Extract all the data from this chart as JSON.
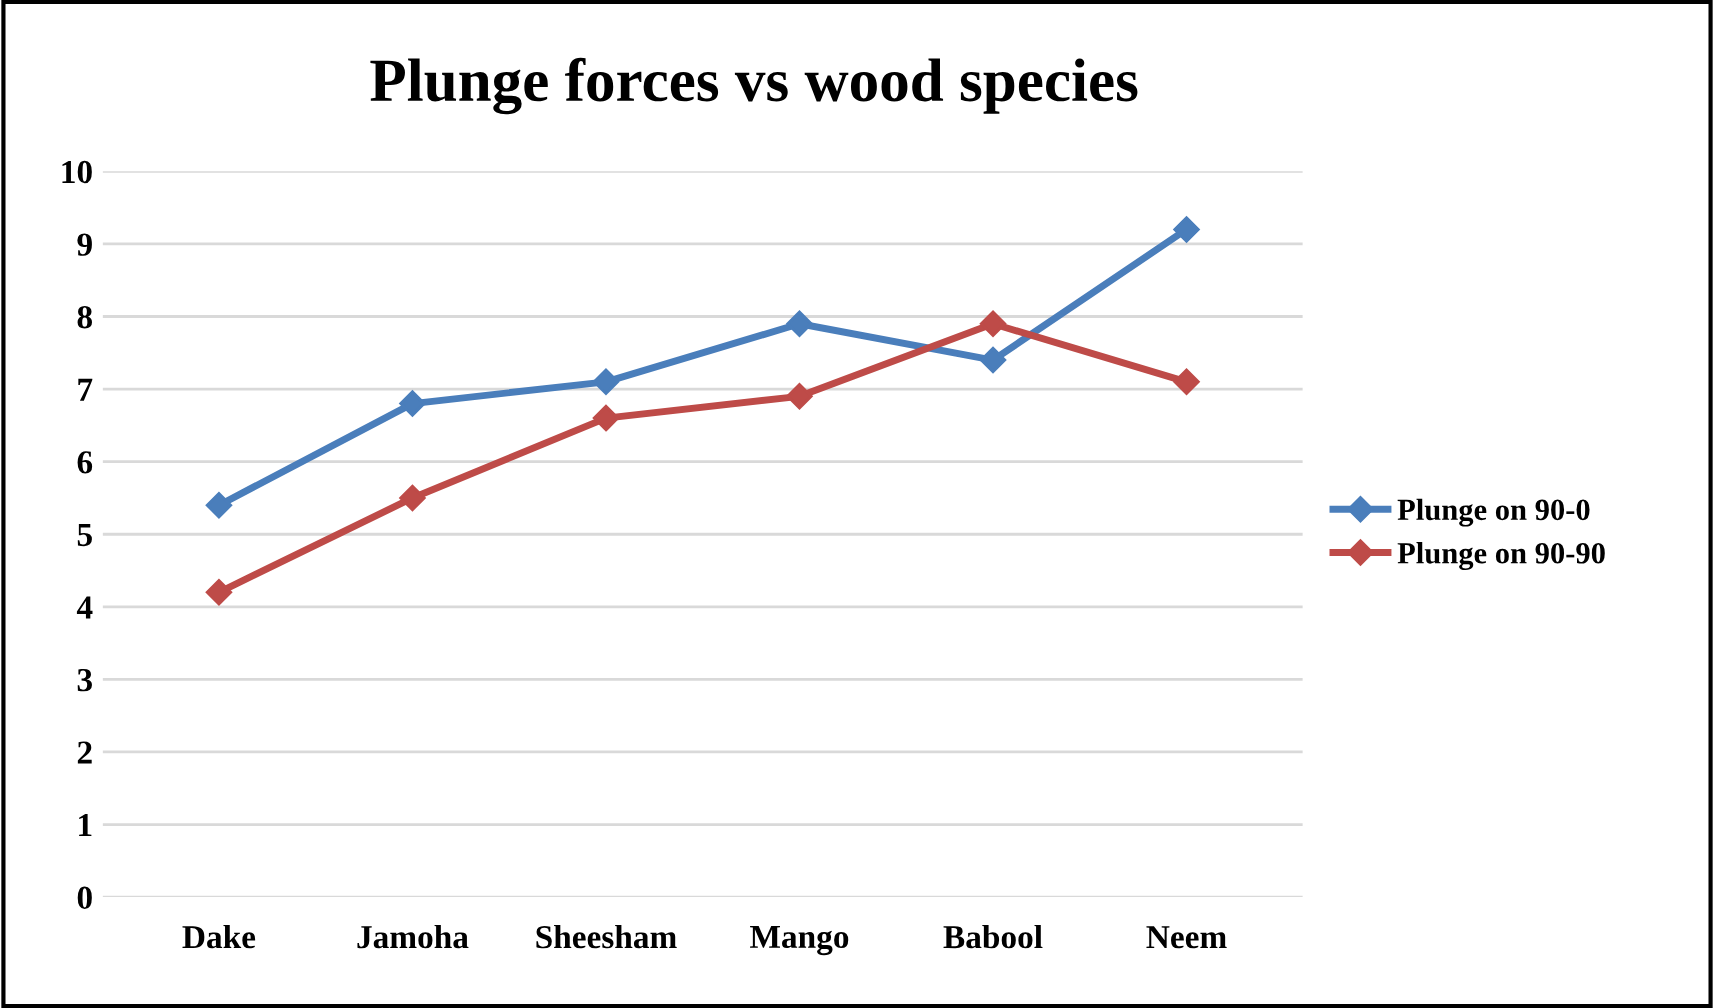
{
  "chart_data": {
    "type": "line",
    "title": "Plunge forces vs wood species",
    "categories": [
      "Dake",
      "Jamoha",
      "Sheesham",
      "Mango",
      "Babool",
      "Neem"
    ],
    "series": [
      {
        "name": "Plunge on 90-0",
        "color": "#4a7ebb",
        "values": [
          5.4,
          6.8,
          7.1,
          7.9,
          7.4,
          9.2
        ]
      },
      {
        "name": "Plunge on 90-90",
        "color": "#be4b48",
        "values": [
          4.2,
          5.5,
          6.6,
          6.9,
          7.9,
          7.1
        ]
      }
    ],
    "ylim": [
      0,
      10
    ],
    "yticks": [
      0,
      1,
      2,
      3,
      4,
      5,
      6,
      7,
      8,
      9,
      10
    ],
    "grid": "y",
    "legend": "right",
    "marker": "diamond",
    "line_style": "solid"
  }
}
